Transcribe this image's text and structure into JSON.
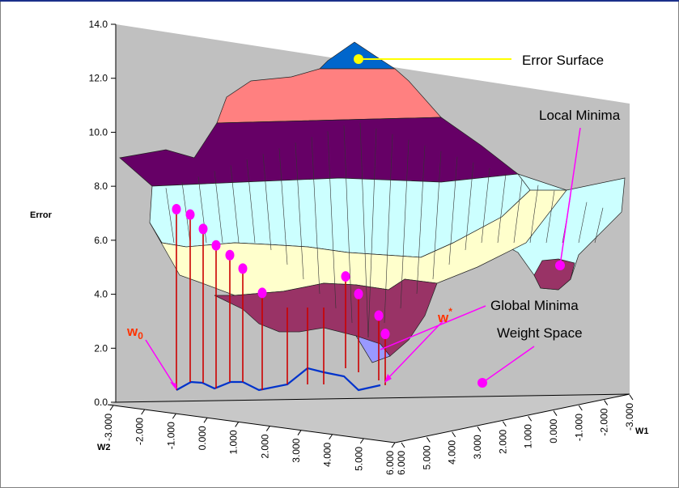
{
  "chart_data": {
    "type": "surface",
    "z_axis": {
      "label": "Error",
      "ticks": [
        "0.0",
        "2.0",
        "4.0",
        "6.0",
        "8.0",
        "10.0",
        "12.0",
        "14.0"
      ],
      "range": [
        0,
        14
      ]
    },
    "w2_axis": {
      "label": "W2",
      "ticks": [
        "-3.000",
        "-2.000",
        "-1.000",
        "0.000",
        "1.000",
        "2.000",
        "3.000",
        "4.000",
        "5.000",
        "6.000"
      ]
    },
    "w1_axis": {
      "label": "W1",
      "ticks": [
        "6.000",
        "5.000",
        "4.000",
        "3.000",
        "2.000",
        "1.000",
        "0.000",
        "-1.000",
        "-2.000",
        "-3.000"
      ]
    },
    "color_bands": [
      {
        "range": [
          0,
          2
        ],
        "color": "#9999ff"
      },
      {
        "range": [
          2,
          4
        ],
        "color": "#993366"
      },
      {
        "range": [
          4,
          6
        ],
        "color": "#ffffcc"
      },
      {
        "range": [
          6,
          8
        ],
        "color": "#ccffff"
      },
      {
        "range": [
          8,
          10
        ],
        "color": "#660066"
      },
      {
        "range": [
          10,
          12
        ],
        "color": "#ff8080"
      },
      {
        "range": [
          12,
          14
        ],
        "color": "#0066cc"
      }
    ],
    "descent_path_errors": [
      6.7,
      6.2,
      5.7,
      5.3,
      4.7,
      4.2,
      3.6,
      3.4,
      2.9,
      2.4,
      1.9
    ],
    "annotations": {
      "error_surface": "Error Surface",
      "local_minima": "Local Minima",
      "global_minima": "Global Minima",
      "weight_space": "Weight Space",
      "w0_base": "w",
      "w0_sub": "0",
      "wstar_base": "w",
      "wstar_sup": "*"
    },
    "colors": {
      "path_points": "#ff00ff",
      "drop_lines": "#cc0000",
      "weight_path": "#0033cc",
      "pointer_lines": "#ff00ff",
      "error_surface_pointer": "#ffff00",
      "wall": "#c0c0c0"
    }
  }
}
